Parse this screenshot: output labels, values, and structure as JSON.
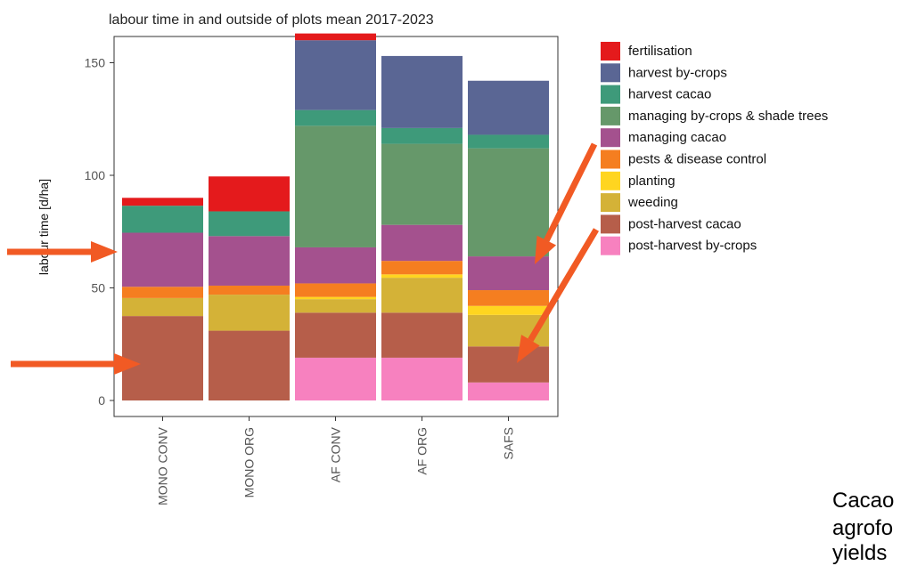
{
  "chart_data": {
    "type": "bar",
    "stacked": true,
    "title": "labour time in and outside of plots mean 2017-2023",
    "xlabel": "",
    "ylabel": "labour time [d/ha]",
    "ylim": [
      0,
      160
    ],
    "yticks": [
      0,
      50,
      100,
      150
    ],
    "grid": false,
    "legend_position": "right",
    "categories": [
      "MONO CONV",
      "MONO ORG",
      "AF CONV",
      "AF ORG",
      "SAFS"
    ],
    "series": [
      {
        "name": "post-harvest by-crops",
        "color": "#F781BF",
        "values": [
          0,
          0,
          19,
          19,
          8
        ]
      },
      {
        "name": "post-harvest cacao",
        "color": "#B65E4A",
        "values": [
          37.5,
          31,
          20,
          20,
          16
        ]
      },
      {
        "name": "weeding",
        "color": "#D4B237",
        "values": [
          8,
          16,
          6,
          15.5,
          14
        ]
      },
      {
        "name": "planting",
        "color": "#FFD520",
        "values": [
          0,
          0,
          1,
          1.5,
          4
        ]
      },
      {
        "name": "pests & disease control",
        "color": "#F57E20",
        "values": [
          5,
          4,
          6,
          6,
          7
        ]
      },
      {
        "name": "managing cacao",
        "color": "#A4518E",
        "values": [
          24,
          22,
          16,
          16,
          15
        ]
      },
      {
        "name": "managing by-crops & shade trees",
        "color": "#66986A",
        "values": [
          0,
          0,
          54,
          36,
          48
        ]
      },
      {
        "name": "harvest cacao",
        "color": "#3E9A7A",
        "values": [
          12,
          11,
          7,
          7,
          6
        ]
      },
      {
        "name": "harvest by-crops",
        "color": "#5A6694",
        "values": [
          0,
          0,
          31,
          32,
          24
        ]
      },
      {
        "name": "fertilisation",
        "color": "#E41A1C",
        "values": [
          3.5,
          15.5,
          3,
          0,
          0
        ]
      }
    ],
    "legend_order": [
      "fertilisation",
      "harvest by-crops",
      "harvest cacao",
      "managing by-crops & shade trees",
      "managing cacao",
      "pests & disease control",
      "planting",
      "weeding",
      "post-harvest cacao",
      "post-harvest by-crops"
    ]
  },
  "annotations": {
    "arrow_color": "#F15A24"
  },
  "side_text": [
    "Cacao",
    "agrofo",
    "yields"
  ]
}
